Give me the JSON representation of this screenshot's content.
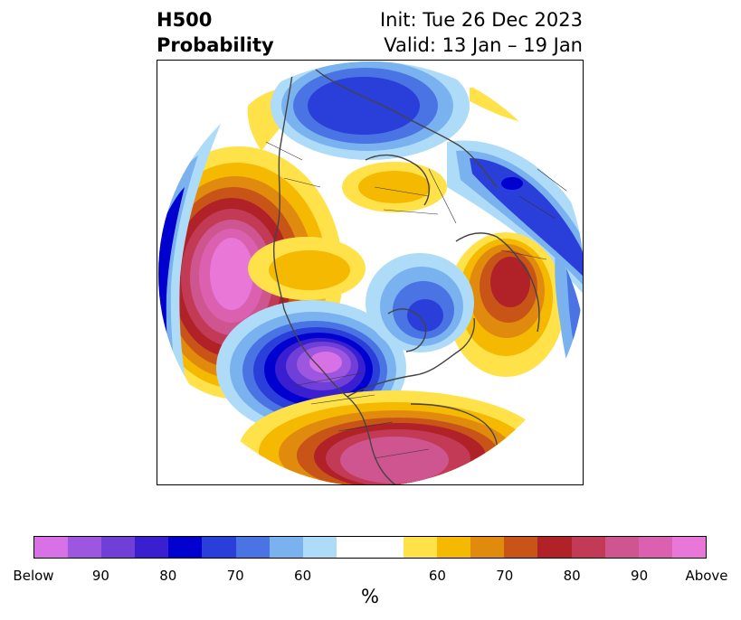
{
  "title": {
    "left_line1": "H500",
    "left_line2": "Probability",
    "right_line1": "Init: Tue 26 Dec 2023",
    "right_line2": "Valid: 13 Jan – 19 Jan"
  },
  "colorbar": {
    "unit": "%",
    "colors": [
      "#d870e6",
      "#9c56e0",
      "#6f3fd8",
      "#3a1fd0",
      "#0000cf",
      "#2a3ed9",
      "#4a73e3",
      "#7ab2f0",
      "#aedcf8",
      "#ffffff",
      "#ffffff",
      "#ffe24a",
      "#f4b900",
      "#e08a0e",
      "#c85418",
      "#b02228",
      "#c23a55",
      "#cf5590",
      "#db60b0",
      "#e877d8"
    ],
    "tick_labels": [
      "Below",
      "90",
      "80",
      "70",
      "60",
      "60",
      "70",
      "80",
      "90",
      "Above"
    ]
  },
  "map": {
    "projection": "north-polar-stereographic",
    "regions": [
      {
        "name": "pacific-above",
        "category": "above",
        "peak_percent": 100
      },
      {
        "name": "central-canada-below",
        "category": "below",
        "peak_percent": 100
      },
      {
        "name": "eastern-us-above",
        "category": "above",
        "peak_percent": 90
      },
      {
        "name": "scandinavia-above",
        "category": "above",
        "peak_percent": 80
      },
      {
        "name": "siberia-below",
        "category": "below",
        "peak_percent": 80
      },
      {
        "name": "atlantic-below",
        "category": "below",
        "peak_percent": 70
      },
      {
        "name": "eurasia-above",
        "category": "above",
        "peak_percent": 60
      }
    ]
  }
}
